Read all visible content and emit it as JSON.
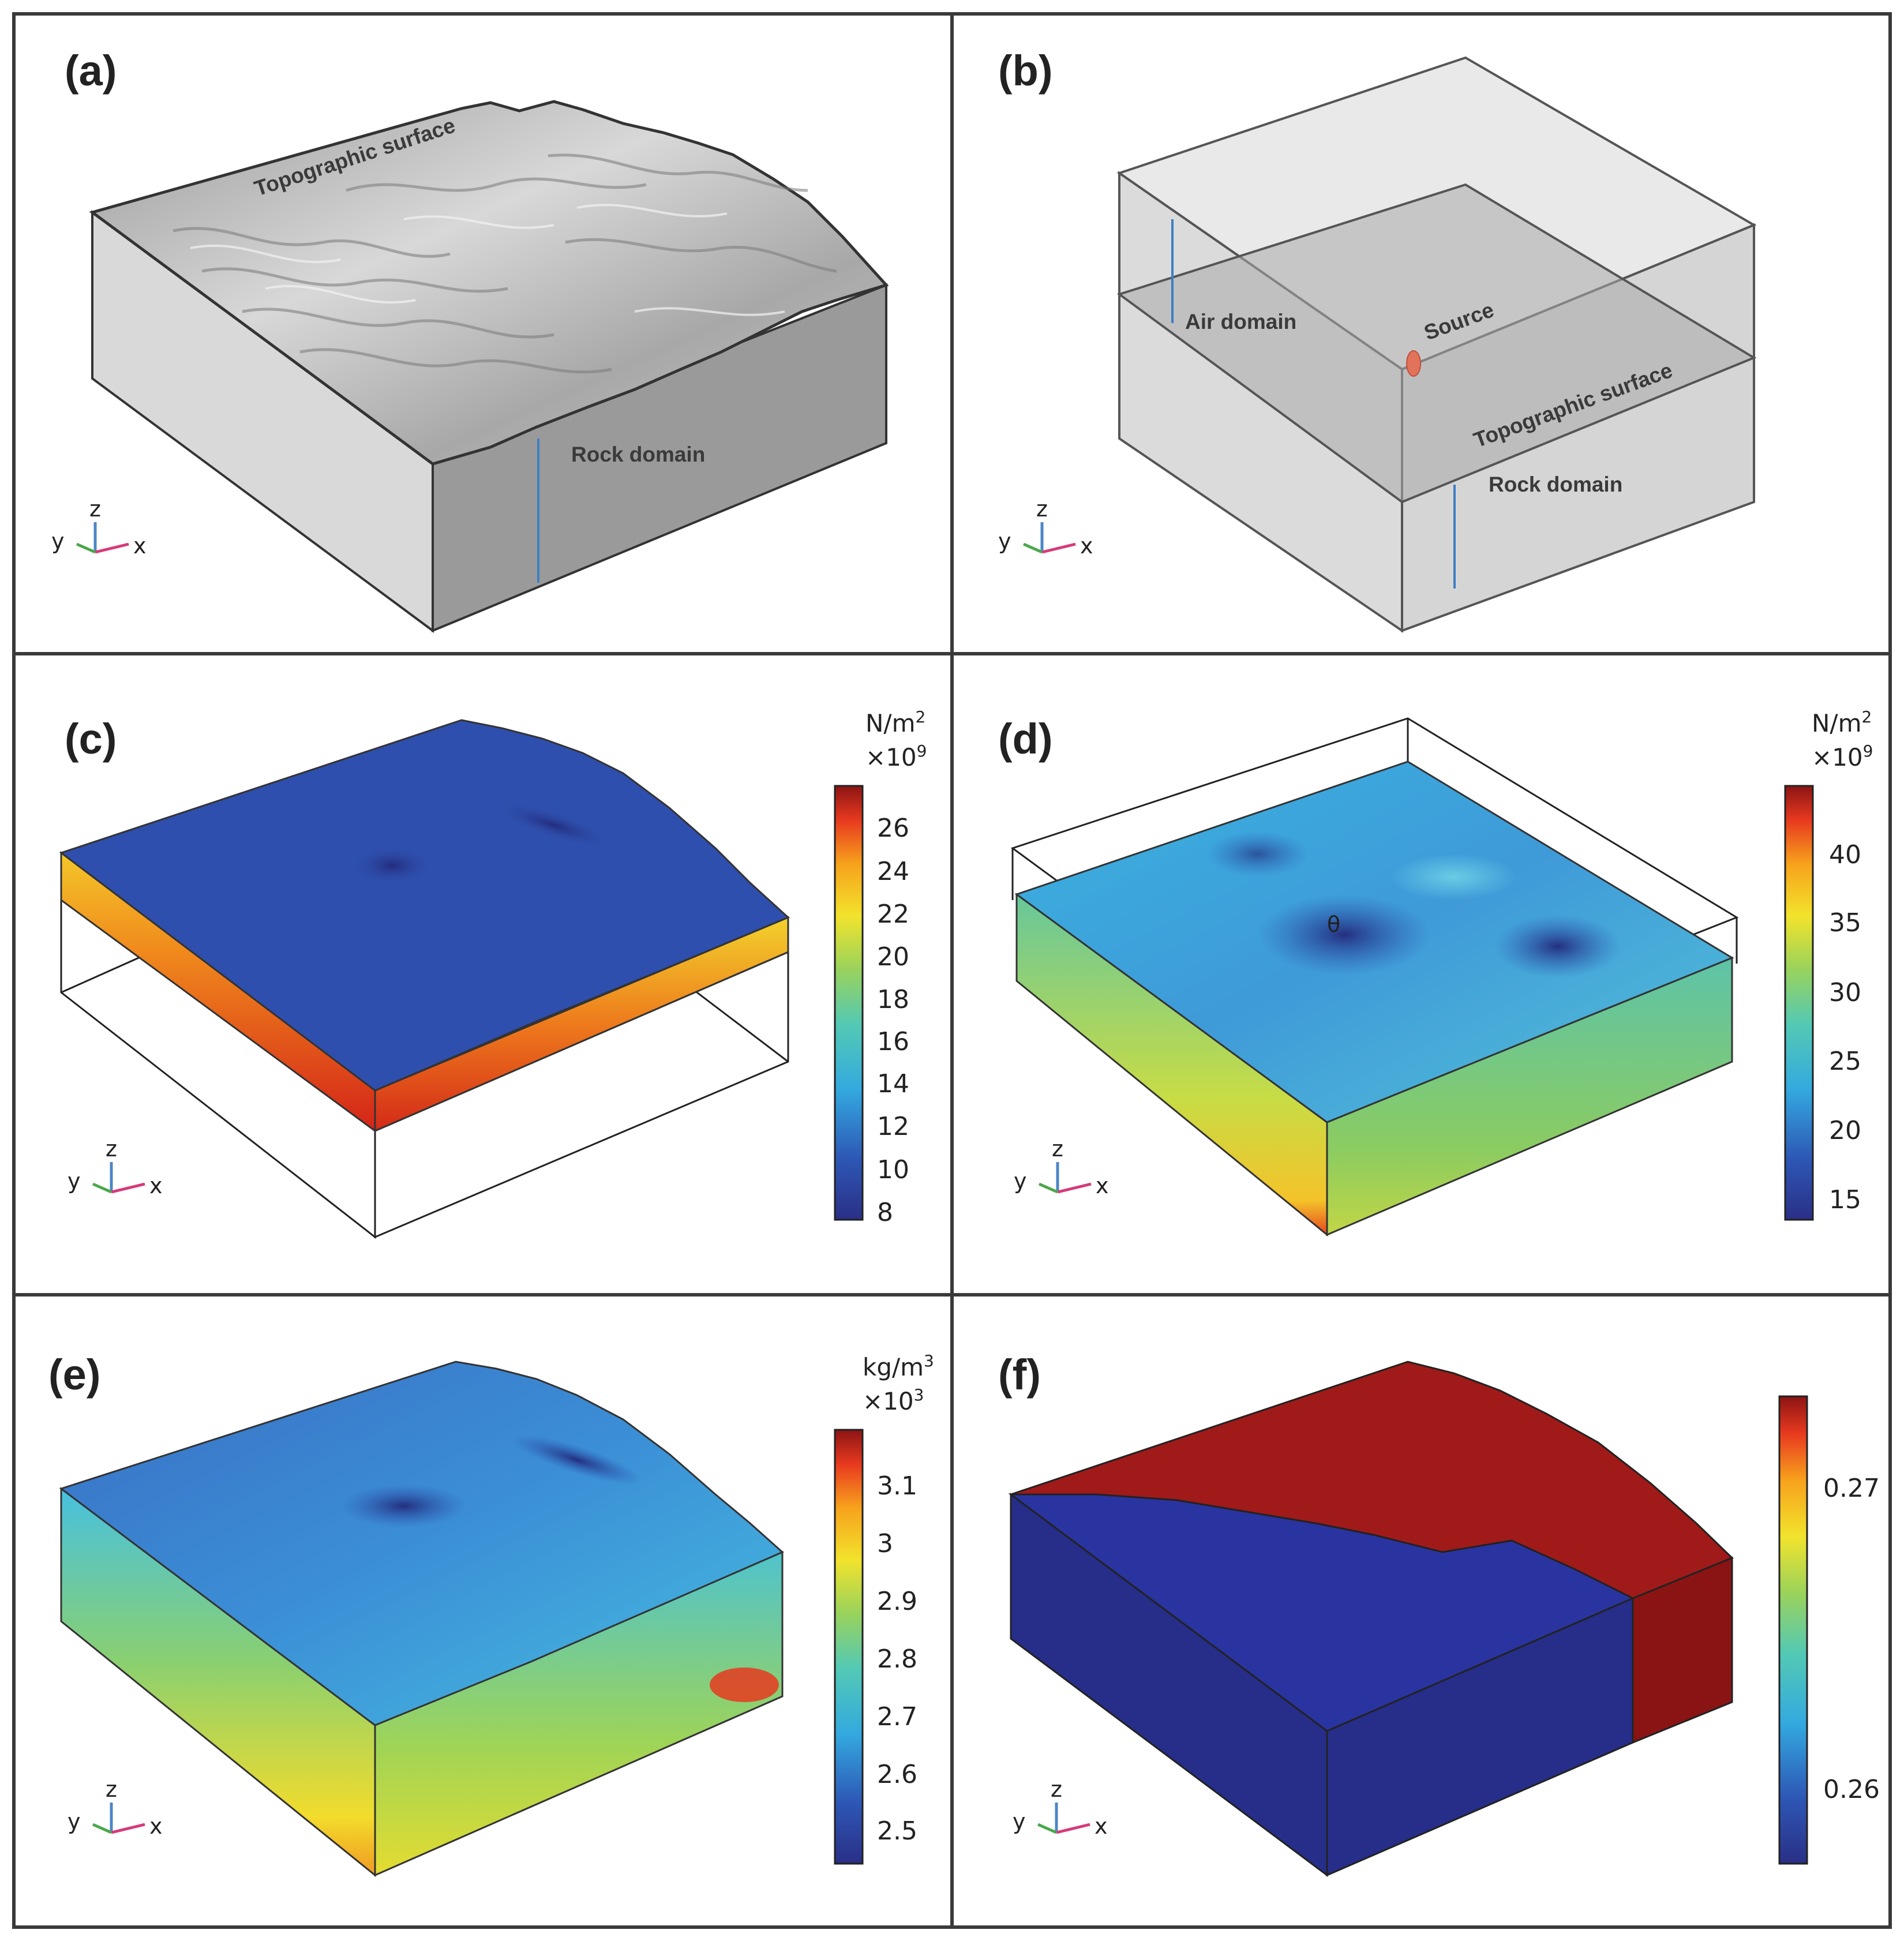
{
  "panels": {
    "a": {
      "label": "(a)",
      "annotations": {
        "topographic_surface": "Topographic surface",
        "rock_domain": "Rock domain"
      }
    },
    "b": {
      "label": "(b)",
      "annotations": {
        "air_domain": "Air domain",
        "source": "Source",
        "topographic_surface": "Topographic surface",
        "rock_domain": "Rock domain"
      }
    },
    "c": {
      "label": "(c)",
      "colorbar": {
        "unit": "N/m",
        "unit_sup": "2",
        "scale": "×10",
        "scale_sup": "9",
        "ticks": [
          "26",
          "24",
          "22",
          "20",
          "18",
          "16",
          "14",
          "12",
          "10",
          "8"
        ]
      }
    },
    "d": {
      "label": "(d)",
      "marker": "θ",
      "colorbar": {
        "unit": "N/m",
        "unit_sup": "2",
        "scale": "×10",
        "scale_sup": "9",
        "ticks": [
          "40",
          "35",
          "30",
          "25",
          "20",
          "15"
        ]
      }
    },
    "e": {
      "label": "(e)",
      "colorbar": {
        "unit": "kg/m",
        "unit_sup": "3",
        "scale": "×10",
        "scale_sup": "3",
        "ticks": [
          "3.1",
          "3",
          "2.9",
          "2.8",
          "2.7",
          "2.6",
          "2.5"
        ]
      }
    },
    "f": {
      "label": "(f)",
      "colorbar": {
        "ticks": [
          "0.27",
          "0.26"
        ]
      }
    }
  },
  "axes_triad": {
    "x": "x",
    "y": "y",
    "z": "z"
  },
  "colors": {
    "jet": [
      "#2a2f86",
      "#2d57b5",
      "#33a9df",
      "#53c9b4",
      "#9bd35a",
      "#f2e32c",
      "#f7a21c",
      "#e83a1f",
      "#8c1414"
    ],
    "gray_surface": "#b9b9b9",
    "arrow_blue": "#3d7fc4",
    "source_red": "#e0735a",
    "axis_x": "#d63a7a",
    "axis_y": "#4aa84a",
    "axis_z": "#4d86c6"
  }
}
